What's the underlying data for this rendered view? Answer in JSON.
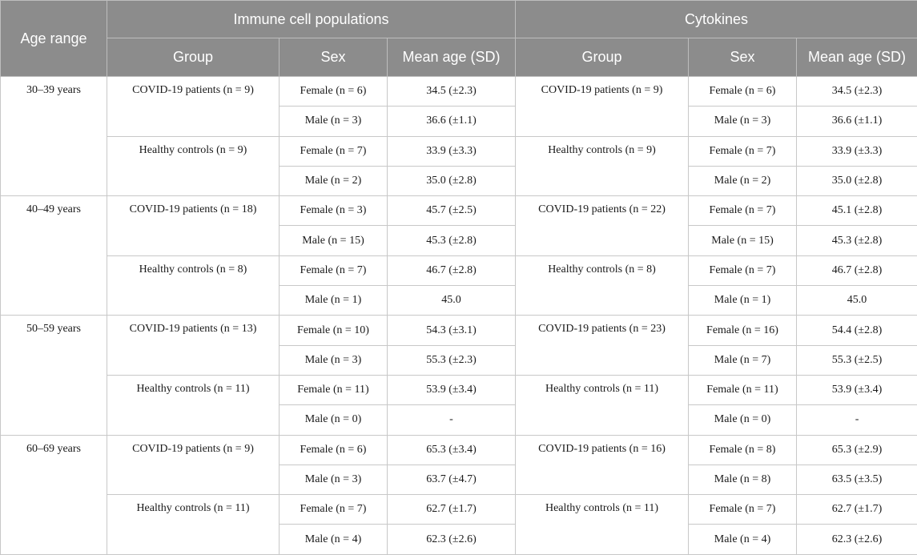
{
  "header": {
    "age_range": "Age range",
    "section_immune": "Immune cell populations",
    "section_cytokines": "Cytokines",
    "group": "Group",
    "sex": "Sex",
    "mean_age": "Mean age (SD)"
  },
  "blocks": [
    {
      "age": "30–39 years",
      "groups": [
        {
          "immune_label": "COVID-19 patients (n = 9)",
          "cyto_label": "COVID-19 patients (n = 9)",
          "rows": [
            {
              "immune_sex": "Female (n = 6)",
              "immune_mean": "34.5 (±2.3)",
              "cyto_sex": "Female (n = 6)",
              "cyto_mean": "34.5 (±2.3)"
            },
            {
              "immune_sex": "Male (n = 3)",
              "immune_mean": "36.6 (±1.1)",
              "cyto_sex": "Male (n = 3)",
              "cyto_mean": "36.6 (±1.1)"
            }
          ]
        },
        {
          "immune_label": "Healthy controls (n = 9)",
          "cyto_label": "Healthy controls (n = 9)",
          "rows": [
            {
              "immune_sex": "Female (n = 7)",
              "immune_mean": "33.9 (±3.3)",
              "cyto_sex": "Female (n = 7)",
              "cyto_mean": "33.9 (±3.3)"
            },
            {
              "immune_sex": "Male (n = 2)",
              "immune_mean": "35.0 (±2.8)",
              "cyto_sex": "Male (n = 2)",
              "cyto_mean": "35.0 (±2.8)"
            }
          ]
        }
      ]
    },
    {
      "age": "40–49 years",
      "groups": [
        {
          "immune_label": "COVID-19 patients (n = 18)",
          "cyto_label": "COVID-19 patients (n = 22)",
          "rows": [
            {
              "immune_sex": "Female (n = 3)",
              "immune_mean": "45.7 (±2.5)",
              "cyto_sex": "Female (n = 7)",
              "cyto_mean": "45.1 (±2.8)"
            },
            {
              "immune_sex": "Male (n = 15)",
              "immune_mean": "45.3 (±2.8)",
              "cyto_sex": "Male (n = 15)",
              "cyto_mean": "45.3 (±2.8)"
            }
          ]
        },
        {
          "immune_label": "Healthy controls (n = 8)",
          "cyto_label": "Healthy controls (n = 8)",
          "rows": [
            {
              "immune_sex": "Female (n = 7)",
              "immune_mean": "46.7 (±2.8)",
              "cyto_sex": "Female (n = 7)",
              "cyto_mean": "46.7 (±2.8)"
            },
            {
              "immune_sex": "Male (n = 1)",
              "immune_mean": "45.0",
              "cyto_sex": "Male (n = 1)",
              "cyto_mean": "45.0"
            }
          ]
        }
      ]
    },
    {
      "age": "50–59 years",
      "groups": [
        {
          "immune_label": "COVID-19 patients (n = 13)",
          "cyto_label": "COVID-19 patients (n = 23)",
          "rows": [
            {
              "immune_sex": "Female (n = 10)",
              "immune_mean": "54.3 (±3.1)",
              "cyto_sex": "Female (n = 16)",
              "cyto_mean": "54.4 (±2.8)"
            },
            {
              "immune_sex": "Male (n = 3)",
              "immune_mean": "55.3 (±2.3)",
              "cyto_sex": "Male (n = 7)",
              "cyto_mean": "55.3 (±2.5)"
            }
          ]
        },
        {
          "immune_label": "Healthy controls (n = 11)",
          "cyto_label": "Healthy controls (n = 11)",
          "rows": [
            {
              "immune_sex": "Female (n = 11)",
              "immune_mean": "53.9 (±3.4)",
              "cyto_sex": "Female (n = 11)",
              "cyto_mean": "53.9 (±3.4)"
            },
            {
              "immune_sex": "Male (n = 0)",
              "immune_mean": "-",
              "cyto_sex": "Male (n = 0)",
              "cyto_mean": "-"
            }
          ]
        }
      ]
    },
    {
      "age": "60–69 years",
      "groups": [
        {
          "immune_label": "COVID-19 patients (n = 9)",
          "cyto_label": "COVID-19 patients (n = 16)",
          "rows": [
            {
              "immune_sex": "Female (n = 6)",
              "immune_mean": "65.3 (±3.4)",
              "cyto_sex": "Female (n = 8)",
              "cyto_mean": "65.3 (±2.9)"
            },
            {
              "immune_sex": "Male (n = 3)",
              "immune_mean": "63.7 (±4.7)",
              "cyto_sex": "Male (n = 8)",
              "cyto_mean": "63.5 (±3.5)"
            }
          ]
        },
        {
          "immune_label": "Healthy controls (n = 11)",
          "cyto_label": "Healthy controls (n = 11)",
          "rows": [
            {
              "immune_sex": "Female (n = 7)",
              "immune_mean": "62.7 (±1.7)",
              "cyto_sex": "Female (n = 7)",
              "cyto_mean": "62.7 (±1.7)"
            },
            {
              "immune_sex": "Male (n = 4)",
              "immune_mean": "62.3 (±2.6)",
              "cyto_sex": "Male (n = 4)",
              "cyto_mean": "62.3 (±2.6)"
            }
          ]
        }
      ]
    }
  ]
}
